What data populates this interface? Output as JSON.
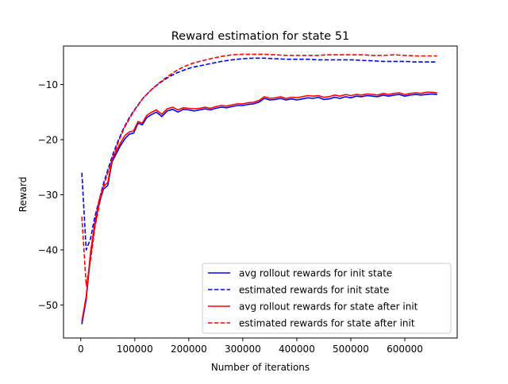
{
  "chart_data": {
    "type": "line",
    "title": "Reward estimation for state 51",
    "xlabel": "Number of iterations",
    "ylabel": "Reward",
    "xlim": [
      -32000,
      697000
    ],
    "ylim": [
      -56,
      -3
    ],
    "x_ticks": [
      0,
      100000,
      200000,
      300000,
      400000,
      500000,
      600000
    ],
    "x_tick_labels": [
      "0",
      "100000",
      "200000",
      "300000",
      "400000",
      "500000",
      "600000"
    ],
    "y_ticks": [
      -50,
      -40,
      -30,
      -20,
      -10
    ],
    "y_tick_labels": [
      "−50",
      "−40",
      "−30",
      "−20",
      "−10"
    ],
    "grid": false,
    "legend_position": "lower-right",
    "series": [
      {
        "name": "avg rollout rewards for init state",
        "color": "#0000ff",
        "style": "solid",
        "x": [
          2000,
          10000,
          18000,
          26000,
          34000,
          42000,
          50000,
          58000,
          66000,
          74000,
          82000,
          90000,
          98000,
          106000,
          114000,
          122000,
          130000,
          140000,
          150000,
          160000,
          170000,
          180000,
          190000,
          200000,
          210000,
          220000,
          230000,
          240000,
          250000,
          260000,
          270000,
          280000,
          290000,
          300000,
          310000,
          320000,
          330000,
          340000,
          350000,
          360000,
          370000,
          380000,
          390000,
          400000,
          410000,
          420000,
          430000,
          440000,
          450000,
          460000,
          470000,
          480000,
          490000,
          500000,
          510000,
          520000,
          530000,
          540000,
          550000,
          560000,
          570000,
          580000,
          590000,
          600000,
          610000,
          620000,
          630000,
          640000,
          650000,
          660000
        ],
        "values": [
          -53.5,
          -49.0,
          -41.0,
          -35.5,
          -31.5,
          -29.0,
          -28.3,
          -24.0,
          -22.5,
          -21.0,
          -19.8,
          -19.0,
          -18.8,
          -17.0,
          -17.3,
          -16.0,
          -15.5,
          -15.0,
          -15.8,
          -14.8,
          -14.5,
          -15.0,
          -14.5,
          -14.6,
          -14.8,
          -14.6,
          -14.4,
          -14.6,
          -14.3,
          -14.1,
          -14.2,
          -14.0,
          -13.8,
          -13.8,
          -13.6,
          -13.5,
          -13.2,
          -12.5,
          -12.8,
          -12.7,
          -12.5,
          -12.8,
          -12.6,
          -12.8,
          -12.6,
          -12.4,
          -12.5,
          -12.3,
          -12.7,
          -12.6,
          -12.3,
          -12.5,
          -12.2,
          -12.4,
          -12.1,
          -12.2,
          -12.0,
          -12.1,
          -12.2,
          -11.9,
          -12.1,
          -11.9,
          -11.8,
          -12.1,
          -11.9,
          -11.8,
          -11.9,
          -11.8,
          -11.7,
          -11.8
        ]
      },
      {
        "name": "estimated rewards for init state",
        "color": "#0000ff",
        "style": "dashed",
        "x": [
          2000,
          10000,
          18000,
          26000,
          34000,
          42000,
          50000,
          60000,
          70000,
          80000,
          90000,
          100000,
          115000,
          130000,
          145000,
          160000,
          175000,
          190000,
          205000,
          220000,
          240000,
          260000,
          280000,
          300000,
          320000,
          340000,
          360000,
          380000,
          400000,
          420000,
          440000,
          460000,
          480000,
          500000,
          520000,
          540000,
          560000,
          580000,
          600000,
          620000,
          640000,
          660000
        ],
        "values": [
          -26.0,
          -40.0,
          -38.0,
          -34.0,
          -31.0,
          -28.0,
          -25.5,
          -22.5,
          -20.0,
          -17.8,
          -16.0,
          -14.5,
          -12.5,
          -11.0,
          -9.8,
          -8.8,
          -8.0,
          -7.4,
          -6.9,
          -6.6,
          -6.2,
          -5.8,
          -5.5,
          -5.3,
          -5.2,
          -5.2,
          -5.3,
          -5.4,
          -5.4,
          -5.4,
          -5.5,
          -5.5,
          -5.5,
          -5.5,
          -5.6,
          -5.7,
          -5.8,
          -5.8,
          -5.8,
          -5.9,
          -5.9,
          -5.9
        ]
      },
      {
        "name": "avg rollout rewards for state after init",
        "color": "#ff0000",
        "style": "solid",
        "x": [
          2000,
          10000,
          18000,
          26000,
          34000,
          42000,
          50000,
          58000,
          66000,
          74000,
          82000,
          90000,
          98000,
          106000,
          114000,
          122000,
          130000,
          140000,
          150000,
          160000,
          170000,
          180000,
          190000,
          200000,
          210000,
          220000,
          230000,
          240000,
          250000,
          260000,
          270000,
          280000,
          290000,
          300000,
          310000,
          320000,
          330000,
          340000,
          350000,
          360000,
          370000,
          380000,
          390000,
          400000,
          410000,
          420000,
          430000,
          440000,
          450000,
          460000,
          470000,
          480000,
          490000,
          500000,
          510000,
          520000,
          530000,
          540000,
          550000,
          560000,
          570000,
          580000,
          590000,
          600000,
          610000,
          620000,
          630000,
          640000,
          650000,
          660000
        ],
        "values": [
          -53.0,
          -48.5,
          -40.5,
          -35.0,
          -31.0,
          -28.5,
          -27.8,
          -23.6,
          -22.0,
          -20.5,
          -19.2,
          -18.6,
          -18.4,
          -16.7,
          -17.0,
          -15.6,
          -15.1,
          -14.6,
          -15.4,
          -14.4,
          -14.1,
          -14.6,
          -14.2,
          -14.3,
          -14.4,
          -14.3,
          -14.1,
          -14.3,
          -14.0,
          -13.8,
          -13.9,
          -13.7,
          -13.5,
          -13.5,
          -13.3,
          -13.2,
          -12.9,
          -12.2,
          -12.5,
          -12.4,
          -12.2,
          -12.5,
          -12.3,
          -12.4,
          -12.2,
          -12.0,
          -12.1,
          -12.0,
          -12.3,
          -12.2,
          -11.9,
          -12.1,
          -11.8,
          -12.0,
          -11.8,
          -11.9,
          -11.7,
          -11.8,
          -11.9,
          -11.6,
          -11.8,
          -11.6,
          -11.5,
          -11.8,
          -11.6,
          -11.5,
          -11.6,
          -11.4,
          -11.4,
          -11.5
        ]
      },
      {
        "name": "estimated rewards for state after init",
        "color": "#ff0000",
        "style": "dashed",
        "x": [
          2000,
          10000,
          18000,
          26000,
          34000,
          42000,
          50000,
          60000,
          70000,
          80000,
          90000,
          100000,
          115000,
          130000,
          145000,
          160000,
          175000,
          190000,
          205000,
          220000,
          240000,
          260000,
          280000,
          300000,
          320000,
          340000,
          360000,
          380000,
          400000,
          420000,
          440000,
          460000,
          480000,
          500000,
          520000,
          540000,
          560000,
          580000,
          600000,
          620000,
          640000,
          660000
        ],
        "values": [
          -34.0,
          -46.5,
          -42.0,
          -36.0,
          -32.0,
          -28.5,
          -26.0,
          -23.0,
          -20.3,
          -18.0,
          -16.2,
          -14.6,
          -12.5,
          -11.0,
          -9.7,
          -8.6,
          -7.6,
          -6.8,
          -6.2,
          -5.8,
          -5.3,
          -4.9,
          -4.6,
          -4.5,
          -4.5,
          -4.5,
          -4.6,
          -4.7,
          -4.7,
          -4.7,
          -4.7,
          -4.6,
          -4.6,
          -4.6,
          -4.6,
          -4.7,
          -4.7,
          -4.6,
          -4.7,
          -4.8,
          -4.8,
          -4.8
        ]
      }
    ]
  }
}
